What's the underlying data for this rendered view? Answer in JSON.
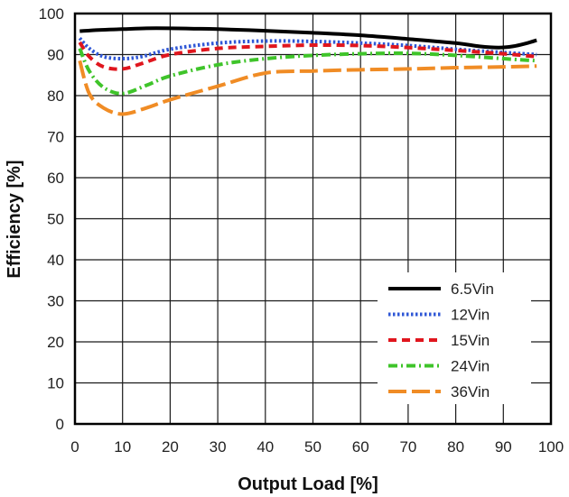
{
  "chart_data": {
    "type": "line",
    "title": "",
    "xlabel": "Output Load [%]",
    "ylabel": "Efficiency [%]",
    "xlim": [
      0,
      100
    ],
    "ylim": [
      0,
      100
    ],
    "xticks": [
      0,
      10,
      20,
      30,
      40,
      50,
      60,
      70,
      80,
      90,
      100
    ],
    "yticks": [
      0,
      10,
      20,
      30,
      40,
      50,
      60,
      70,
      80,
      90,
      100
    ],
    "grid": true,
    "legend_position": "bottom-right",
    "series": [
      {
        "name": "6.5Vin",
        "color": "#000000",
        "style": "solid",
        "x": [
          1,
          5,
          10,
          15,
          20,
          25,
          30,
          40,
          50,
          60,
          70,
          80,
          85,
          89,
          92,
          95,
          97
        ],
        "y": [
          95.7,
          96.0,
          96.2,
          96.4,
          96.4,
          96.3,
          96.2,
          95.8,
          95.3,
          94.7,
          93.8,
          92.8,
          92.0,
          91.7,
          92.0,
          92.8,
          93.5
        ]
      },
      {
        "name": "12Vin",
        "color": "#2f57d6",
        "style": "dotted",
        "x": [
          1,
          3,
          6,
          10,
          14,
          20,
          30,
          40,
          50,
          60,
          70,
          80,
          90,
          97
        ],
        "y": [
          94.0,
          91.5,
          89.5,
          89.0,
          89.5,
          91.3,
          92.8,
          93.3,
          93.2,
          92.8,
          92.2,
          91.3,
          90.5,
          90.0
        ]
      },
      {
        "name": "15Vin",
        "color": "#e0161e",
        "style": "dashed",
        "x": [
          1,
          3,
          6,
          10,
          14,
          20,
          30,
          40,
          50,
          60,
          70,
          80,
          90,
          97
        ],
        "y": [
          93.0,
          89.5,
          87.0,
          86.5,
          87.8,
          90.0,
          91.5,
          92.0,
          92.3,
          92.2,
          91.7,
          91.0,
          90.2,
          89.5
        ]
      },
      {
        "name": "24Vin",
        "color": "#3fc42a",
        "style": "dashdot",
        "x": [
          1,
          3,
          6,
          10,
          15,
          20,
          30,
          40,
          50,
          60,
          70,
          80,
          90,
          97
        ],
        "y": [
          91.5,
          86.0,
          82.0,
          80.5,
          82.5,
          84.8,
          87.5,
          89.0,
          89.8,
          90.2,
          90.3,
          89.8,
          89.0,
          88.5
        ]
      },
      {
        "name": "36Vin",
        "color": "#f08c25",
        "style": "longdash",
        "x": [
          1,
          3,
          6,
          10,
          15,
          20,
          30,
          40,
          50,
          60,
          70,
          80,
          90,
          97
        ],
        "y": [
          88.5,
          80.5,
          77.0,
          75.5,
          77.0,
          79.0,
          82.3,
          85.5,
          86.0,
          86.3,
          86.5,
          86.8,
          87.0,
          87.2
        ]
      }
    ]
  }
}
